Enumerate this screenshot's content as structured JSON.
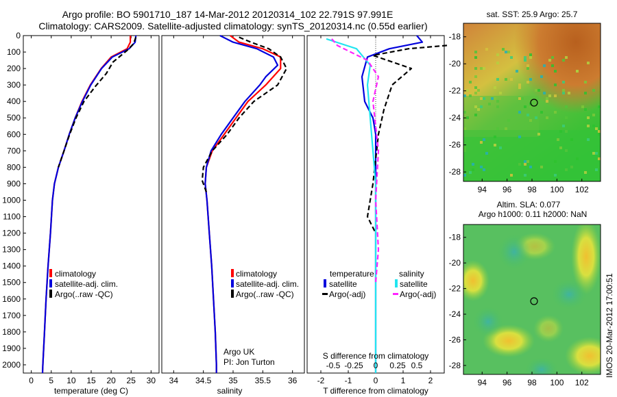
{
  "header": {
    "title_line1": "Argo profile: BO 5901710_187 14-Mar-2012 20120314_102 22.791S 97.991E",
    "title_line2": "Climatology: CARS2009. Satellite-adjusted climatology: synTS_20120314.nc (0.55d earlier)"
  },
  "colors": {
    "climatology": "#ff0000",
    "satellite": "#0000dd",
    "argo": "#000000",
    "sal_satellite": "#22e5f0",
    "sal_argo": "#ff22ff"
  },
  "chart_data": [
    {
      "type": "line",
      "panel": "temperature",
      "xlabel": "temperature (deg C)",
      "xlim": [
        -2,
        32
      ],
      "xticks": [
        0,
        5,
        10,
        15,
        20,
        25,
        30
      ],
      "ylim": [
        0,
        2050
      ],
      "yticks": [
        0,
        100,
        200,
        300,
        400,
        500,
        600,
        700,
        800,
        900,
        1000,
        1100,
        1200,
        1300,
        1400,
        1500,
        1600,
        1700,
        1800,
        1900,
        2000
      ],
      "legend": [
        "climatology",
        "satellite-adj. clim.",
        "Argo(..raw -QC)"
      ],
      "series": [
        {
          "name": "climatology",
          "color": "#ff0000",
          "points": [
            [
              24.8,
              0
            ],
            [
              24.8,
              40
            ],
            [
              24,
              80
            ],
            [
              20,
              130
            ],
            [
              17.5,
              200
            ],
            [
              14.8,
              300
            ],
            [
              12.7,
              400
            ],
            [
              11,
              500
            ],
            [
              9.5,
              600
            ],
            [
              8.2,
              700
            ],
            [
              6.8,
              800
            ],
            [
              5.8,
              900
            ],
            [
              5.3,
              1000
            ],
            [
              4.8,
              1200
            ],
            [
              4.2,
              1400
            ],
            [
              3.7,
              1600
            ],
            [
              3.3,
              1800
            ],
            [
              2.9,
              2000
            ],
            [
              2.8,
              2050
            ]
          ]
        },
        {
          "name": "satellite-adj. clim.",
          "color": "#0000dd",
          "points": [
            [
              26.2,
              0
            ],
            [
              26,
              40
            ],
            [
              24.5,
              80
            ],
            [
              20.3,
              130
            ],
            [
              17.6,
              200
            ],
            [
              14.9,
              300
            ],
            [
              12.8,
              400
            ],
            [
              11,
              500
            ],
            [
              9.5,
              600
            ],
            [
              8.2,
              700
            ],
            [
              6.8,
              800
            ],
            [
              5.8,
              900
            ],
            [
              5.3,
              1000
            ],
            [
              4.8,
              1200
            ],
            [
              4.2,
              1400
            ],
            [
              3.7,
              1600
            ],
            [
              3.3,
              1800
            ],
            [
              2.9,
              2000
            ],
            [
              2.8,
              2050
            ]
          ]
        },
        {
          "name": "Argo(..raw -QC)",
          "color": "#000000",
          "dashed": true,
          "points": [
            [
              26.2,
              10
            ],
            [
              25.6,
              50
            ],
            [
              24,
              90
            ],
            [
              22.5,
              120
            ],
            [
              20.5,
              160
            ],
            [
              18.8,
              230
            ],
            [
              16,
              310
            ],
            [
              13.2,
              400
            ],
            [
              11.2,
              500
            ],
            [
              9.6,
              600
            ],
            [
              8.2,
              700
            ],
            [
              6.8,
              800
            ]
          ]
        }
      ]
    },
    {
      "type": "line",
      "panel": "salinity",
      "xlabel": "salinity",
      "xlim": [
        33.8,
        36.2
      ],
      "xticks": [
        34,
        34.5,
        35,
        35.5,
        36
      ],
      "ylim": [
        0,
        2050
      ],
      "legend": [
        "climatology",
        "satellite-adj. clim.",
        "Argo(..raw -QC)"
      ],
      "annotations": [
        "Argo UK",
        "PI: Jon Turton"
      ],
      "series": [
        {
          "name": "climatology",
          "color": "#ff0000",
          "points": [
            [
              34.95,
              0
            ],
            [
              35.1,
              40
            ],
            [
              35.5,
              80
            ],
            [
              35.8,
              130
            ],
            [
              35.8,
              200
            ],
            [
              35.55,
              300
            ],
            [
              35.25,
              400
            ],
            [
              35.05,
              500
            ],
            [
              34.85,
              600
            ],
            [
              34.65,
              700
            ],
            [
              34.55,
              800
            ],
            [
              34.53,
              900
            ],
            [
              34.56,
              1000
            ],
            [
              34.6,
              1200
            ],
            [
              34.64,
              1400
            ],
            [
              34.67,
              1600
            ],
            [
              34.7,
              1800
            ],
            [
              34.72,
              2000
            ],
            [
              34.72,
              2050
            ]
          ]
        },
        {
          "name": "satellite-adj. clim.",
          "color": "#0000dd",
          "points": [
            [
              34.78,
              0
            ],
            [
              35.0,
              40
            ],
            [
              35.4,
              80
            ],
            [
              35.68,
              130
            ],
            [
              35.75,
              180
            ],
            [
              35.55,
              250
            ],
            [
              35.45,
              300
            ],
            [
              35.2,
              400
            ],
            [
              35.0,
              500
            ],
            [
              34.8,
              600
            ],
            [
              34.63,
              700
            ],
            [
              34.55,
              800
            ],
            [
              34.53,
              900
            ],
            [
              34.56,
              1000
            ],
            [
              34.6,
              1200
            ],
            [
              34.64,
              1400
            ],
            [
              34.67,
              1600
            ],
            [
              34.7,
              1800
            ],
            [
              34.72,
              2000
            ],
            [
              34.72,
              2050
            ]
          ]
        },
        {
          "name": "Argo(..raw -QC)",
          "color": "#000000",
          "dashed": true,
          "points": [
            [
              35.1,
              10
            ],
            [
              35.3,
              40
            ],
            [
              35.6,
              80
            ],
            [
              35.8,
              130
            ],
            [
              35.9,
              200
            ],
            [
              35.75,
              300
            ],
            [
              35.35,
              400
            ],
            [
              35.1,
              500
            ],
            [
              34.9,
              600
            ],
            [
              34.65,
              700
            ],
            [
              34.5,
              800
            ],
            [
              34.48,
              880
            ],
            [
              34.55,
              950
            ]
          ]
        }
      ]
    },
    {
      "type": "line",
      "panel": "difference",
      "xlabel": "T difference from climatology",
      "xlabel_top": "S difference from climatology",
      "xlim": [
        -2.5,
        2.5
      ],
      "xticks": [
        -2,
        -1,
        0,
        1,
        2
      ],
      "top_xticks": [
        "-0.5",
        "-0.25",
        "0",
        "0.25",
        "0.5"
      ],
      "ylim": [
        0,
        2050
      ],
      "legend_headers": [
        "temperature",
        "salinity"
      ],
      "legend": [
        "satellite",
        "Argo(-adj)",
        "satellite",
        "Argo(-adj)"
      ],
      "series": [
        {
          "name": "satellite",
          "color": "#0000dd",
          "points": [
            [
              1.5,
              0
            ],
            [
              1.7,
              40
            ],
            [
              0.5,
              80
            ],
            [
              -0.3,
              130
            ],
            [
              -0.5,
              250
            ],
            [
              -0.4,
              400
            ],
            [
              -0.1,
              500
            ],
            [
              0.0,
              600
            ],
            [
              0.0,
              1000
            ],
            [
              0.0,
              2050
            ]
          ]
        },
        {
          "name": "Argo(-adj)",
          "color": "#000000",
          "dashed": true,
          "points": [
            [
              2.6,
              60
            ],
            [
              1.2,
              80
            ],
            [
              -0.1,
              120
            ],
            [
              1.3,
              200
            ],
            [
              0.6,
              300
            ],
            [
              0.3,
              450
            ],
            [
              0.1,
              600
            ],
            [
              -0.1,
              900
            ],
            [
              -0.3,
              1100
            ],
            [
              0.0,
              1200
            ]
          ]
        },
        {
          "name": "satellite",
          "color": "#22e5f0",
          "points": [
            [
              -1.8,
              20
            ],
            [
              -0.7,
              80
            ],
            [
              -0.2,
              180
            ],
            [
              -0.3,
              300
            ],
            [
              -0.2,
              500
            ],
            [
              -0.1,
              700
            ],
            [
              0.0,
              900
            ],
            [
              0.0,
              1200
            ],
            [
              0.0,
              2050
            ]
          ]
        },
        {
          "name": "Argo(-adj)",
          "color": "#ff22ff",
          "dashed": true,
          "points": [
            [
              -1.6,
              20
            ],
            [
              -1.4,
              60
            ],
            [
              -0.3,
              150
            ],
            [
              0.1,
              250
            ],
            [
              -0.1,
              400
            ],
            [
              0.1,
              700
            ],
            [
              0.0,
              1000
            ],
            [
              0.1,
              1300
            ],
            [
              0.0,
              1500
            ]
          ]
        }
      ]
    },
    {
      "type": "heatmap",
      "panel": "sst-map",
      "title": "sat. SST: 25.9  Argo: 25.7",
      "xticks": [
        94,
        96,
        98,
        100,
        102
      ],
      "yticks": [
        -18,
        -20,
        -22,
        -24,
        -26,
        -28
      ],
      "xlim": [
        92.5,
        103.5
      ],
      "ylim": [
        -28.7,
        -17
      ],
      "marker": {
        "lon": 97.991,
        "lat": -22.791
      }
    },
    {
      "type": "heatmap",
      "panel": "sla-map",
      "title_line1": "Altim. SLA: 0.077",
      "title_line2": "Argo h1000: 0.11 h2000: NaN",
      "xticks": [
        94,
        96,
        98,
        100,
        102
      ],
      "yticks": [
        -18,
        -20,
        -22,
        -24,
        -26,
        -28
      ],
      "xlim": [
        92.5,
        103.5
      ],
      "ylim": [
        -28.7,
        -17
      ],
      "marker": {
        "lon": 97.991,
        "lat": -22.791
      }
    }
  ],
  "footer": {
    "stamp": "IMOS 20-Mar-2012 17:00:51"
  }
}
